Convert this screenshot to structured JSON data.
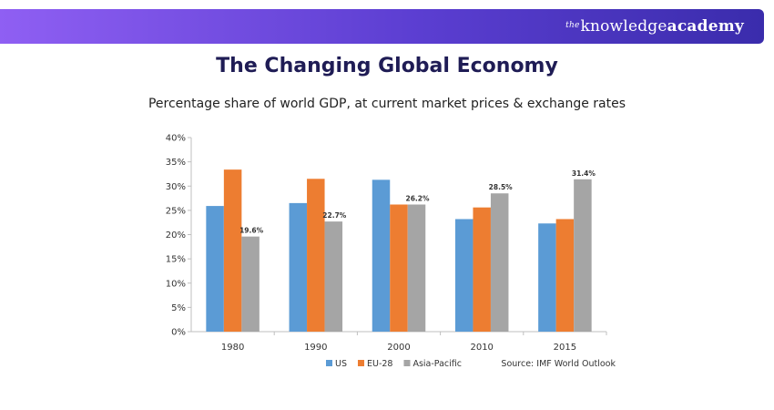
{
  "brand": {
    "prefix": "the",
    "part1": "knowledge",
    "part2": "academy"
  },
  "chart_data": {
    "type": "bar",
    "title": "The Changing Global Economy",
    "subtitle": "Percentage share of world GDP, at current market prices & exchange rates",
    "categories": [
      "1980",
      "1990",
      "2000",
      "2010",
      "2015"
    ],
    "yticks": [
      "0%",
      "5%",
      "10%",
      "15%",
      "20%",
      "25%",
      "30%",
      "35%",
      "40%"
    ],
    "ylim": [
      0,
      40
    ],
    "series": [
      {
        "name": "US",
        "color": "#5b9bd5",
        "values": [
          25.9,
          26.5,
          31.3,
          23.2,
          22.3
        ]
      },
      {
        "name": "EU-28",
        "color": "#ed7d31",
        "values": [
          33.4,
          31.5,
          26.2,
          25.6,
          23.2
        ]
      },
      {
        "name": "Asia-Pacific",
        "color": "#a5a5a5",
        "values": [
          19.6,
          22.7,
          26.2,
          28.5,
          31.4
        ],
        "labels": [
          "19.6%",
          "22.7%",
          "26.2%",
          "28.5%",
          "31.4%"
        ]
      }
    ],
    "legend_position": "bottom-left",
    "source": "Source: IMF World Outlook",
    "grid": false
  }
}
